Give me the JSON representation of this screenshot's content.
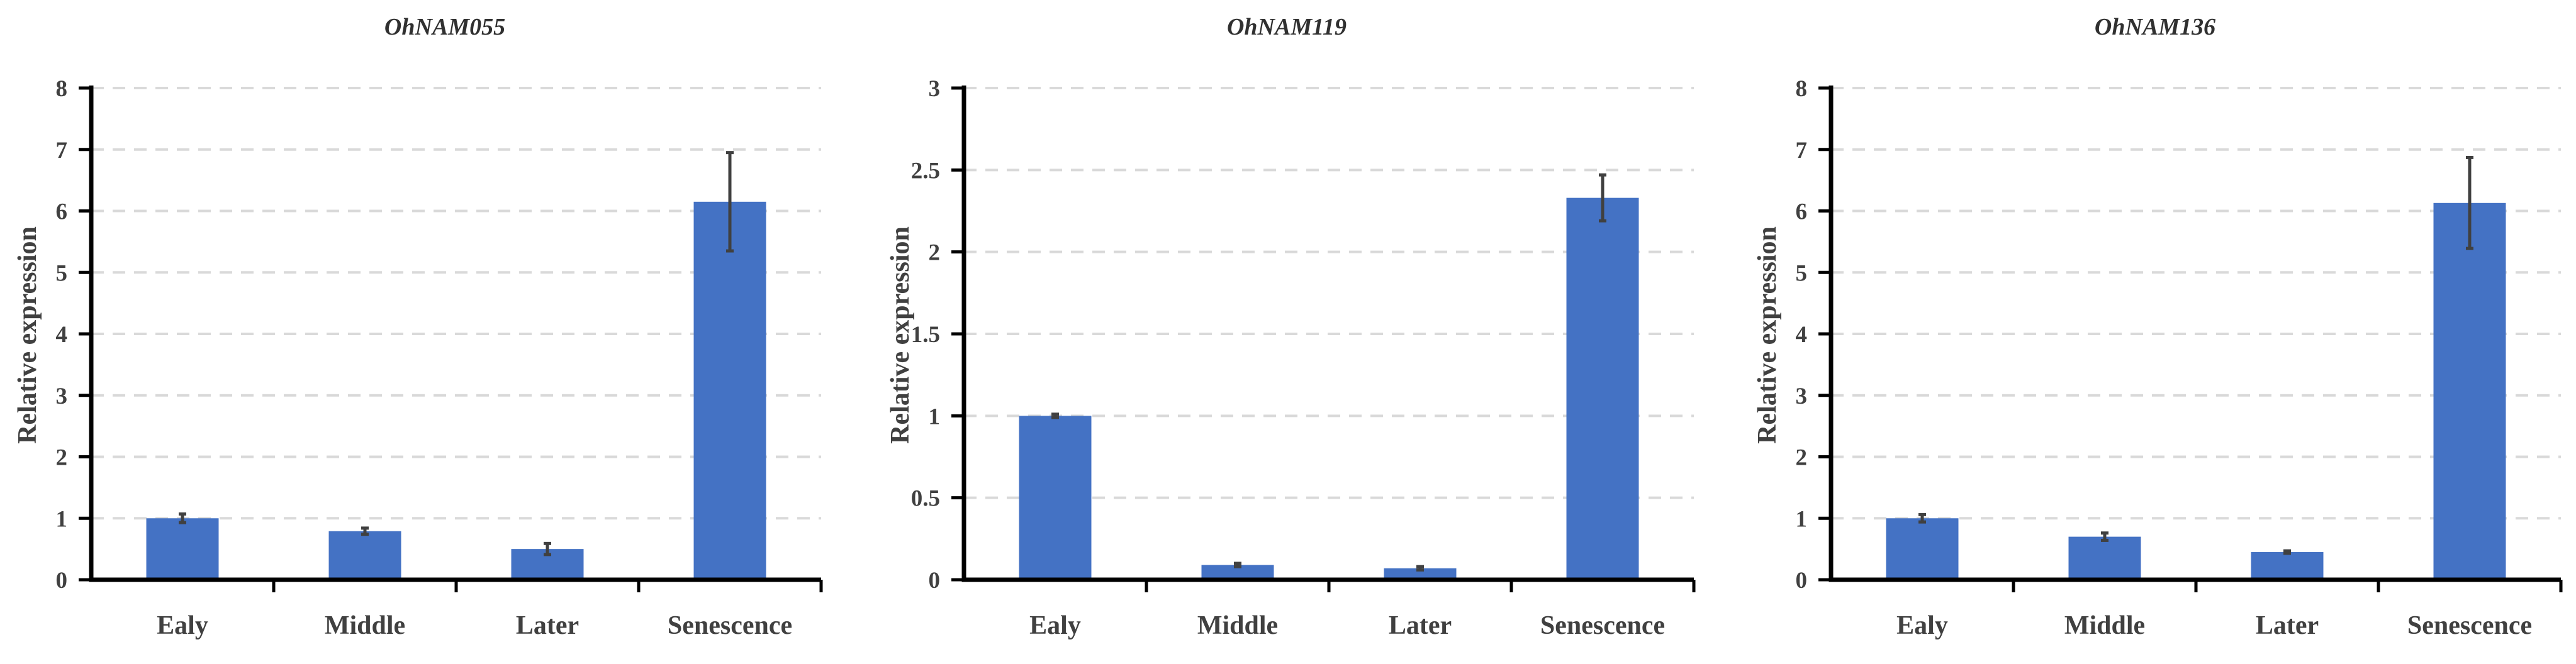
{
  "chart_data": [
    {
      "type": "bar",
      "title": "OhNAM055",
      "ylabel": "Relative expression",
      "xlabel": "",
      "categories": [
        "Ealy",
        "Middle",
        "Later",
        "Senescence"
      ],
      "values": [
        1.0,
        0.79,
        0.5,
        6.15
      ],
      "errors": [
        0.07,
        0.05,
        0.09,
        0.8
      ],
      "ylim": [
        0,
        8
      ],
      "yticks": [
        "0",
        "1",
        "2",
        "3",
        "4",
        "5",
        "6",
        "7",
        "8"
      ],
      "grid": true,
      "bar_color": "#4472c4"
    },
    {
      "type": "bar",
      "title": "OhNAM119",
      "ylabel": "Relative expression",
      "xlabel": "",
      "categories": [
        "Ealy",
        "Middle",
        "Later",
        "Senescence"
      ],
      "values": [
        1.0,
        0.09,
        0.07,
        2.33
      ],
      "errors": [
        0.01,
        0.01,
        0.01,
        0.14
      ],
      "ylim": [
        0,
        3
      ],
      "yticks": [
        "0",
        "0.5",
        "1",
        "1.5",
        "2",
        "2.5",
        "3"
      ],
      "grid": true,
      "bar_color": "#4472c4"
    },
    {
      "type": "bar",
      "title": "OhNAM136",
      "ylabel": "Relative expression",
      "xlabel": "",
      "categories": [
        "Ealy",
        "Middle",
        "Later",
        "Senescence"
      ],
      "values": [
        1.0,
        0.7,
        0.45,
        6.13
      ],
      "errors": [
        0.06,
        0.06,
        0.02,
        0.74
      ],
      "ylim": [
        0,
        8
      ],
      "yticks": [
        "0",
        "1",
        "2",
        "3",
        "4",
        "5",
        "6",
        "7",
        "8"
      ],
      "grid": true,
      "bar_color": "#4472c4"
    }
  ]
}
